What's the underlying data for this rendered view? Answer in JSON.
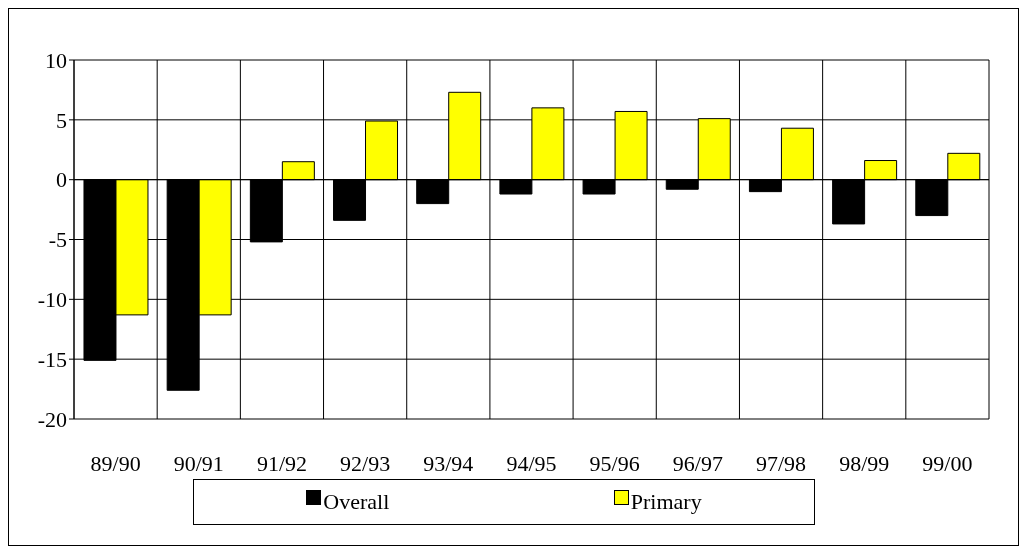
{
  "chart_data": {
    "type": "bar",
    "categories": [
      "89/90",
      "90/91",
      "91/92",
      "92/93",
      "93/94",
      "94/95",
      "95/96",
      "96/97",
      "97/98",
      "98/99",
      "99/00"
    ],
    "series": [
      {
        "name": "Overall",
        "color": "#000000",
        "values": [
          -15.1,
          -17.6,
          -5.2,
          -3.4,
          -2.0,
          -1.2,
          -1.2,
          -0.8,
          -1.0,
          -3.7,
          -3.0
        ]
      },
      {
        "name": "Primary",
        "color": "#ffff00",
        "values": [
          -11.3,
          -11.3,
          1.5,
          4.9,
          7.3,
          6.0,
          5.7,
          5.1,
          4.3,
          1.6,
          2.2
        ]
      }
    ],
    "ylim": [
      -20,
      10
    ],
    "yticks": [
      -20,
      -15,
      -10,
      -5,
      0,
      5,
      10
    ],
    "grid": true,
    "legend": "bottom"
  }
}
